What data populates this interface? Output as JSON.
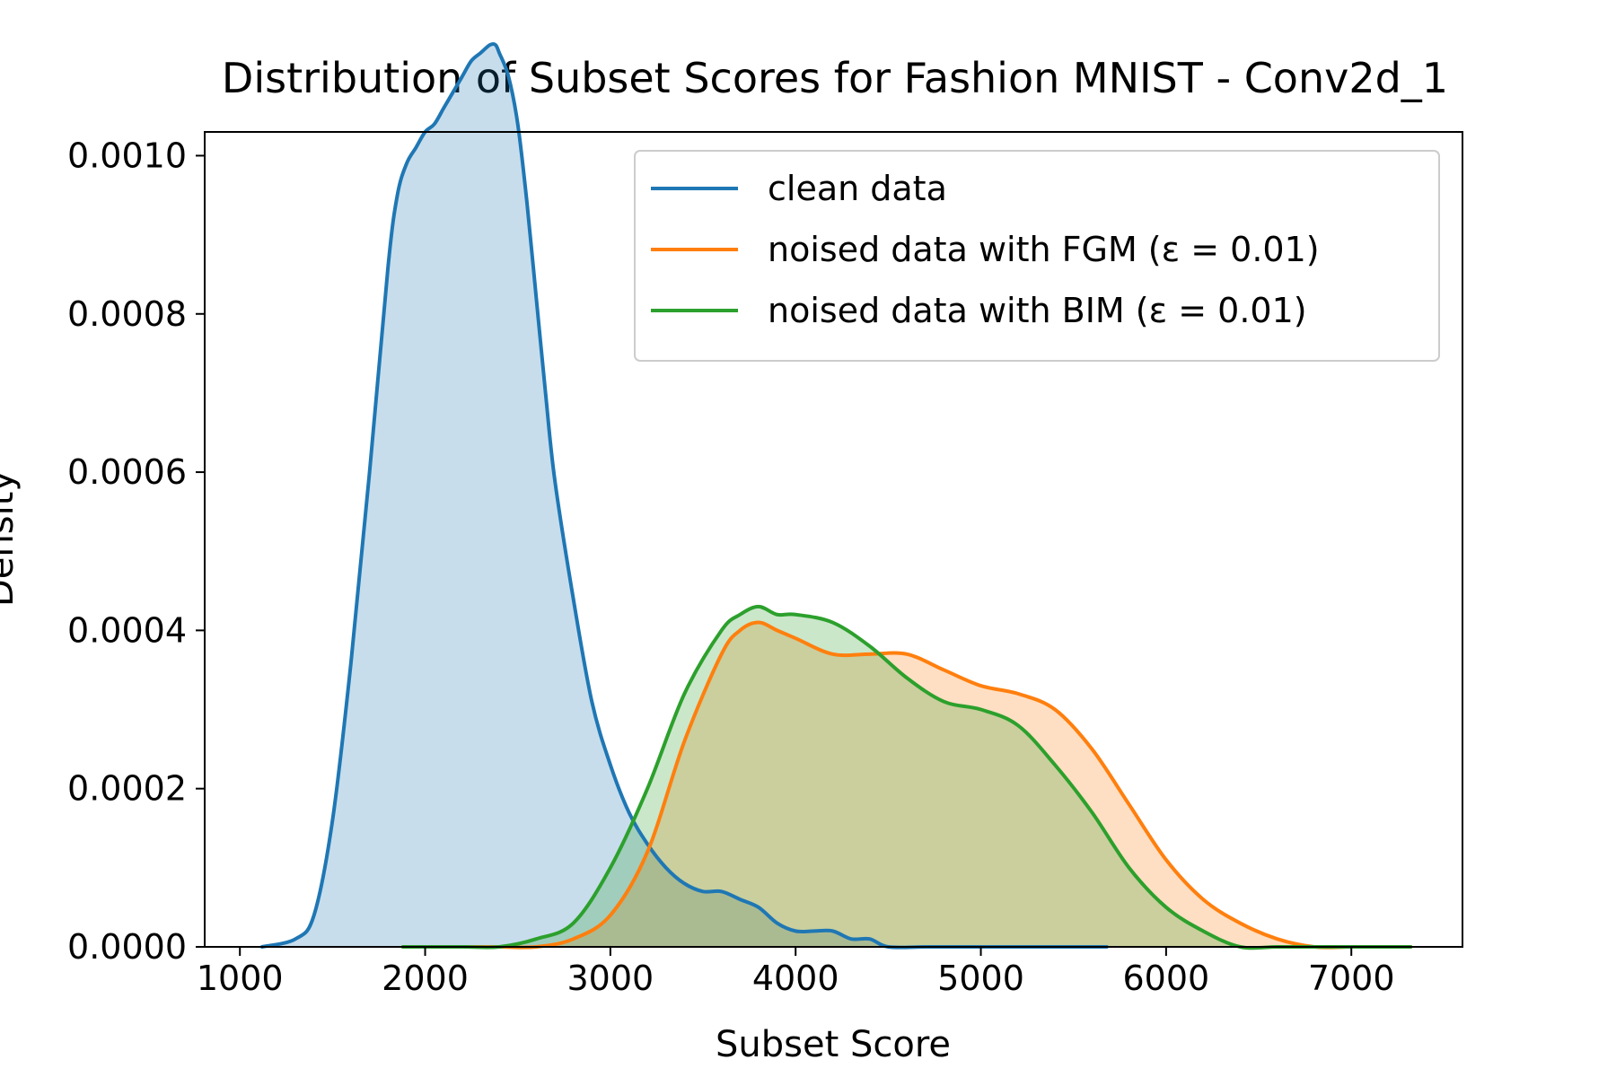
{
  "chart_data": {
    "type": "area",
    "title": "Distribution of Subset Scores for Fashion MNIST - Conv2d_1",
    "xlabel": "Subset Score",
    "ylabel": "Density",
    "xlim": [
      810,
      7600
    ],
    "ylim": [
      0,
      0.00103
    ],
    "x_ticks": [
      1000,
      2000,
      3000,
      4000,
      5000,
      6000,
      7000
    ],
    "x_tick_labels": [
      "1000",
      "2000",
      "3000",
      "4000",
      "5000",
      "6000",
      "7000"
    ],
    "y_ticks": [
      0,
      0.0002,
      0.0004,
      0.0006,
      0.0008,
      0.001
    ],
    "y_tick_labels": [
      "0.0000",
      "0.0002",
      "0.0004",
      "0.0006",
      "0.0008",
      "0.0010"
    ],
    "grid": false,
    "legend_position": "top-right",
    "series": [
      {
        "name": "clean data",
        "color": "#1f77b4",
        "fill_opacity": 0.25,
        "x": [
          1120,
          1300,
          1400,
          1500,
          1600,
          1700,
          1800,
          1850,
          1900,
          1950,
          2000,
          2050,
          2100,
          2150,
          2200,
          2250,
          2300,
          2350,
          2380,
          2400,
          2450,
          2500,
          2550,
          2600,
          2650,
          2700,
          2800,
          2900,
          3000,
          3100,
          3200,
          3300,
          3400,
          3500,
          3600,
          3700,
          3800,
          3900,
          4000,
          4100,
          4200,
          4300,
          4400,
          4500,
          4700,
          4900,
          5100,
          5300,
          5400,
          5500,
          5680
        ],
        "y": [
          0.0,
          1e-05,
          4e-05,
          0.00016,
          0.00036,
          0.0006,
          0.00086,
          0.00095,
          0.00099,
          0.00101,
          0.00103,
          0.00104,
          0.00106,
          0.00108,
          0.0011,
          0.00112,
          0.00113,
          0.00114,
          0.00114,
          0.00113,
          0.0011,
          0.00104,
          0.00094,
          0.00082,
          0.0007,
          0.00059,
          0.00044,
          0.00031,
          0.00023,
          0.00017,
          0.00013,
          0.0001,
          8e-05,
          7e-05,
          7e-05,
          6e-05,
          5e-05,
          3e-05,
          2e-05,
          2e-05,
          2e-05,
          1e-05,
          1e-05,
          0.0,
          0.0,
          0.0,
          0.0,
          0.0,
          0.0,
          0.0,
          0.0
        ]
      },
      {
        "name": "noised data with FGM (ε = 0.01)",
        "color": "#ff7f0e",
        "fill_opacity": 0.25,
        "x": [
          1880,
          2200,
          2400,
          2600,
          2800,
          3000,
          3200,
          3400,
          3600,
          3700,
          3800,
          3900,
          4000,
          4200,
          4400,
          4600,
          4800,
          5000,
          5200,
          5400,
          5600,
          5800,
          6000,
          6200,
          6400,
          6600,
          6800,
          7000,
          7200,
          7320
        ],
        "y": [
          0.0,
          0.0,
          0.0,
          0.0,
          1e-05,
          4e-05,
          0.00012,
          0.00026,
          0.00037,
          0.0004,
          0.00041,
          0.0004,
          0.00039,
          0.00037,
          0.00037,
          0.00037,
          0.00035,
          0.00033,
          0.00032,
          0.0003,
          0.00025,
          0.00018,
          0.00011,
          6e-05,
          3e-05,
          1e-05,
          0.0,
          0.0,
          0.0,
          0.0
        ]
      },
      {
        "name": "noised data with BIM (ε = 0.01)",
        "color": "#2ca02c",
        "fill_opacity": 0.25,
        "x": [
          1880,
          2200,
          2400,
          2600,
          2800,
          3000,
          3200,
          3400,
          3600,
          3700,
          3800,
          3900,
          4000,
          4200,
          4400,
          4600,
          4800,
          5000,
          5200,
          5400,
          5600,
          5800,
          6000,
          6200,
          6400,
          6600,
          6800,
          7000,
          7200,
          7320
        ],
        "y": [
          0.0,
          0.0,
          0.0,
          1e-05,
          3e-05,
          0.0001,
          0.0002,
          0.00032,
          0.0004,
          0.00042,
          0.00043,
          0.00042,
          0.00042,
          0.00041,
          0.00038,
          0.00034,
          0.00031,
          0.0003,
          0.00028,
          0.00023,
          0.00017,
          0.0001,
          5e-05,
          2e-05,
          0.0,
          0.0,
          0.0,
          0.0,
          0.0,
          0.0
        ]
      }
    ]
  }
}
